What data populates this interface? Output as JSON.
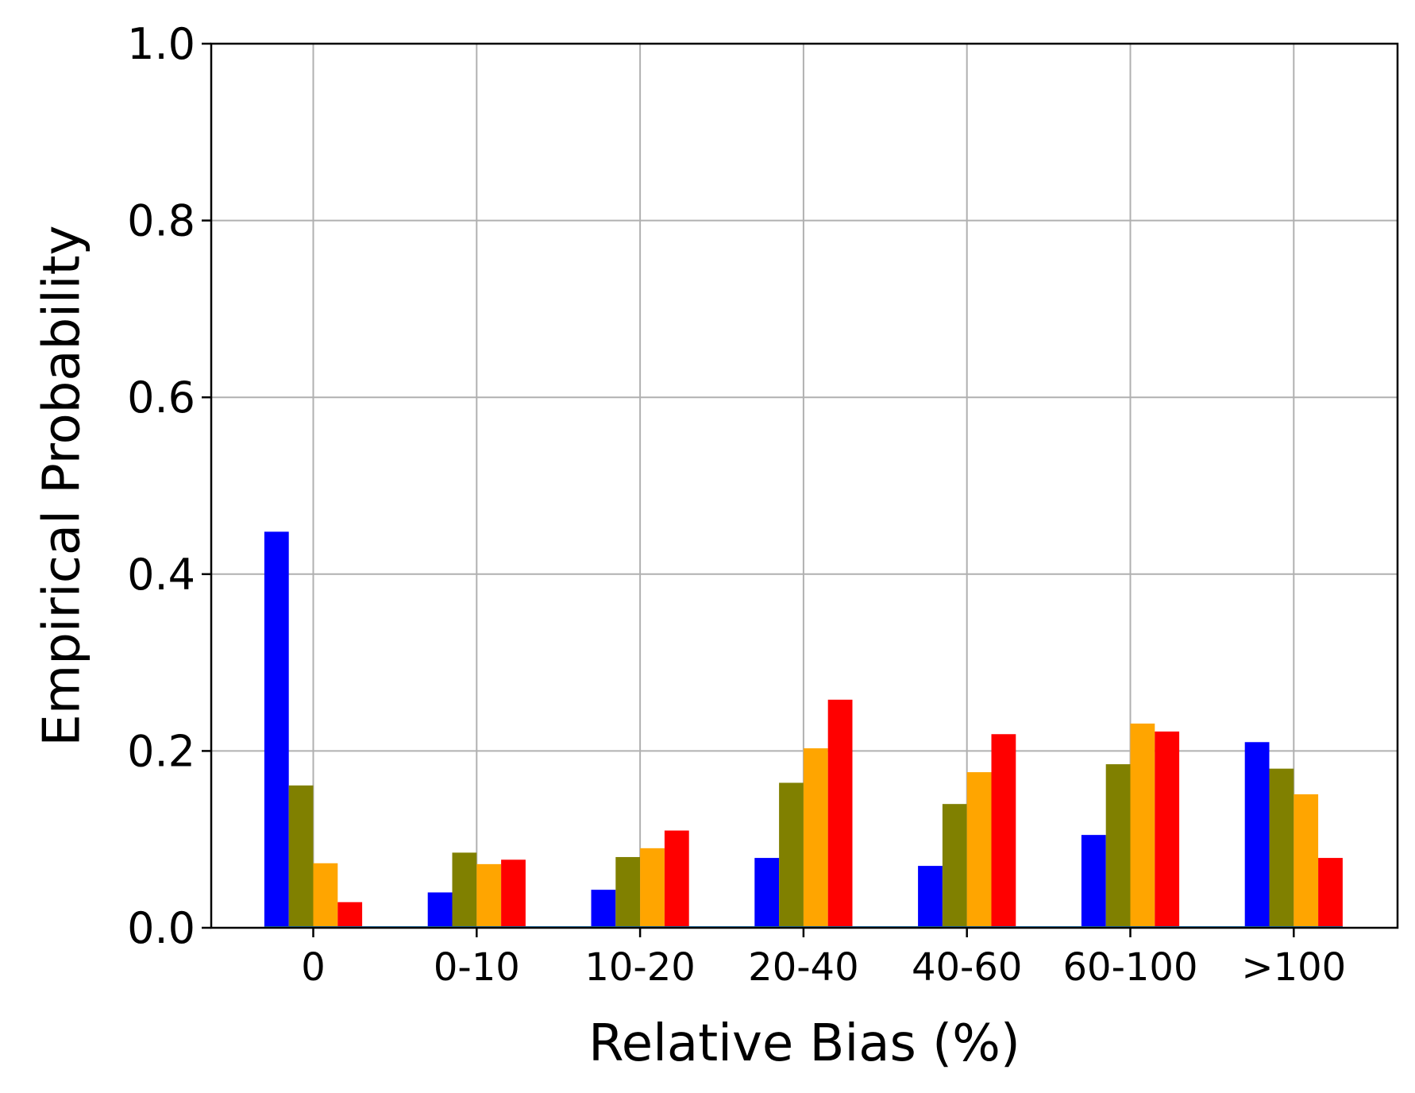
{
  "chart_data": {
    "type": "bar",
    "categories": [
      "0",
      "0-10",
      "10-20",
      "20-40",
      "40-60",
      "60-100",
      ">100"
    ],
    "series": [
      {
        "color": "#0000ff",
        "values": [
          0.448,
          0.04,
          0.043,
          0.079,
          0.07,
          0.105,
          0.21
        ]
      },
      {
        "color": "#808000",
        "values": [
          0.161,
          0.085,
          0.08,
          0.164,
          0.14,
          0.185,
          0.18
        ]
      },
      {
        "color": "#ffa500",
        "values": [
          0.073,
          0.072,
          0.09,
          0.203,
          0.176,
          0.231,
          0.151
        ]
      },
      {
        "color": "#ff0000",
        "values": [
          0.029,
          0.077,
          0.11,
          0.258,
          0.219,
          0.222,
          0.079
        ]
      }
    ],
    "xlabel": "Relative Bias (%)",
    "ylabel": "Empirical Probability",
    "ylim": [
      0,
      1.0
    ],
    "yticks": [
      "0.0",
      "0.2",
      "0.4",
      "0.6",
      "0.8",
      "1.0"
    ],
    "grid": true,
    "baseline_color": "#1f77b4"
  }
}
